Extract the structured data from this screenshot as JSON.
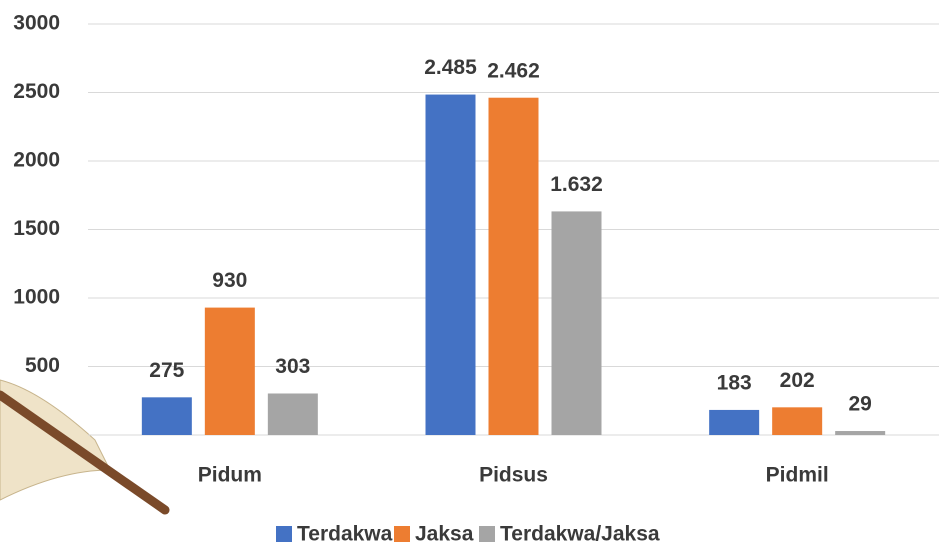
{
  "chart_data": {
    "type": "bar",
    "categories": [
      "Pidum",
      "Pidsus",
      "Pidmil"
    ],
    "series": [
      {
        "name": "Terdakwa",
        "color": "#4472c4",
        "values": [
          275,
          2485,
          183
        ],
        "value_labels": [
          "275",
          "2.485",
          "183"
        ]
      },
      {
        "name": "Jaksa",
        "color": "#ed7d31",
        "values": [
          930,
          2462,
          202
        ],
        "value_labels": [
          "930",
          "2.462",
          "202"
        ]
      },
      {
        "name": "Terdakwa/Jaksa",
        "color": "#a5a5a5",
        "values": [
          303,
          1632,
          29
        ],
        "value_labels": [
          "303",
          "1.632",
          "29"
        ]
      }
    ],
    "ylim": [
      0,
      3000
    ],
    "yticks": [
      500,
      1000,
      1500,
      2000,
      2500,
      3000
    ],
    "grid": true,
    "legend": "bottom"
  }
}
